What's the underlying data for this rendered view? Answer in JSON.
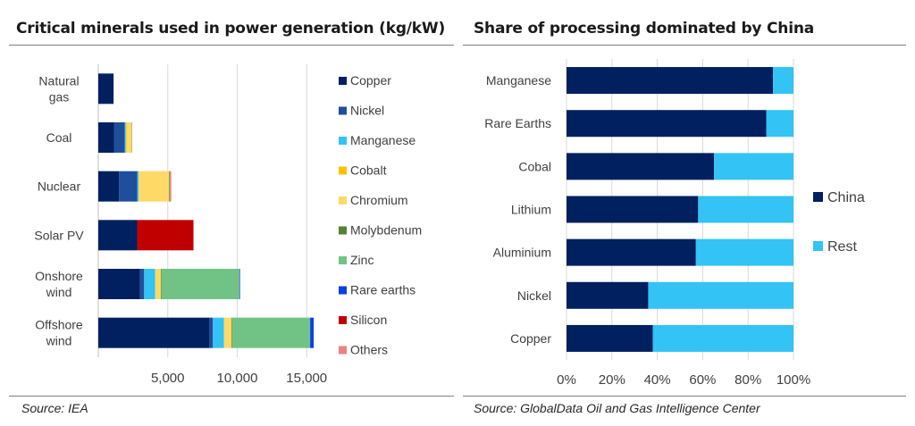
{
  "left_panel": {
    "title": "Critical minerals used in power generation (kg/kW)",
    "source": "Source: IEA"
  },
  "right_panel": {
    "title": "Share of processing dominated by China",
    "source": "Source: GlobalData Oil and Gas Intelligence Center"
  },
  "chart_data": [
    {
      "type": "bar",
      "orientation": "horizontal",
      "stacked": true,
      "title": "Critical minerals used in power generation (kg/kW)",
      "categories": [
        [
          "Natural",
          "gas"
        ],
        [
          "Coal"
        ],
        [
          "Nuclear"
        ],
        [
          "Solar PV"
        ],
        [
          "Onshore",
          "wind"
        ],
        [
          "Offshore",
          "wind"
        ]
      ],
      "x_ticks": [
        "5,000",
        "10,000",
        "15,000"
      ],
      "x_tick_values": [
        5000,
        10000,
        15000
      ],
      "xlim": [
        0,
        15500
      ],
      "grid": true,
      "legend_position": "right",
      "series": [
        {
          "name": "Copper",
          "color": "#002060",
          "values": [
            1100,
            1150,
            1500,
            2800,
            3000,
            8000
          ]
        },
        {
          "name": "Nickel",
          "color": "#1f4e9c",
          "values": [
            0,
            750,
            1300,
            0,
            300,
            250
          ]
        },
        {
          "name": "Manganese",
          "color": "#33c3f5",
          "values": [
            0,
            80,
            100,
            0,
            800,
            800
          ]
        },
        {
          "name": "Cobalt",
          "color": "#ffc000",
          "values": [
            0,
            50,
            0,
            0,
            0,
            0
          ]
        },
        {
          "name": "Chromium",
          "color": "#ffd966",
          "values": [
            0,
            350,
            2200,
            0,
            400,
            550
          ]
        },
        {
          "name": "Molybdenum",
          "color": "#548235",
          "values": [
            0,
            20,
            50,
            0,
            50,
            50
          ]
        },
        {
          "name": "Zinc",
          "color": "#70c384",
          "values": [
            0,
            0,
            0,
            0,
            5600,
            5600
          ]
        },
        {
          "name": "Rare earths",
          "color": "#0b3fe6",
          "values": [
            0,
            0,
            0,
            0,
            50,
            250
          ]
        },
        {
          "name": "Silicon",
          "color": "#c00000",
          "values": [
            0,
            0,
            0,
            4050,
            0,
            0
          ]
        },
        {
          "name": "Others",
          "color": "#f08080",
          "values": [
            0,
            0,
            100,
            0,
            0,
            0
          ]
        }
      ]
    },
    {
      "type": "bar",
      "orientation": "horizontal",
      "stacked": true,
      "title": "Share of processing dominated by China",
      "categories": [
        "Manganese",
        "Rare Earths",
        "Cobal",
        "Lithium",
        "Aluminium",
        "Nickel",
        "Copper"
      ],
      "x_ticks": [
        "0%",
        "20%",
        "40%",
        "60%",
        "80%",
        "100%"
      ],
      "x_tick_values": [
        0,
        20,
        40,
        60,
        80,
        100
      ],
      "xlim": [
        0,
        100
      ],
      "grid": true,
      "legend_position": "right",
      "series": [
        {
          "name": "China",
          "color": "#002060",
          "values": [
            91,
            88,
            65,
            58,
            57,
            36,
            38
          ]
        },
        {
          "name": "Rest",
          "color": "#33c3f5",
          "values": [
            9,
            12,
            35,
            42,
            43,
            64,
            62
          ]
        }
      ]
    }
  ]
}
